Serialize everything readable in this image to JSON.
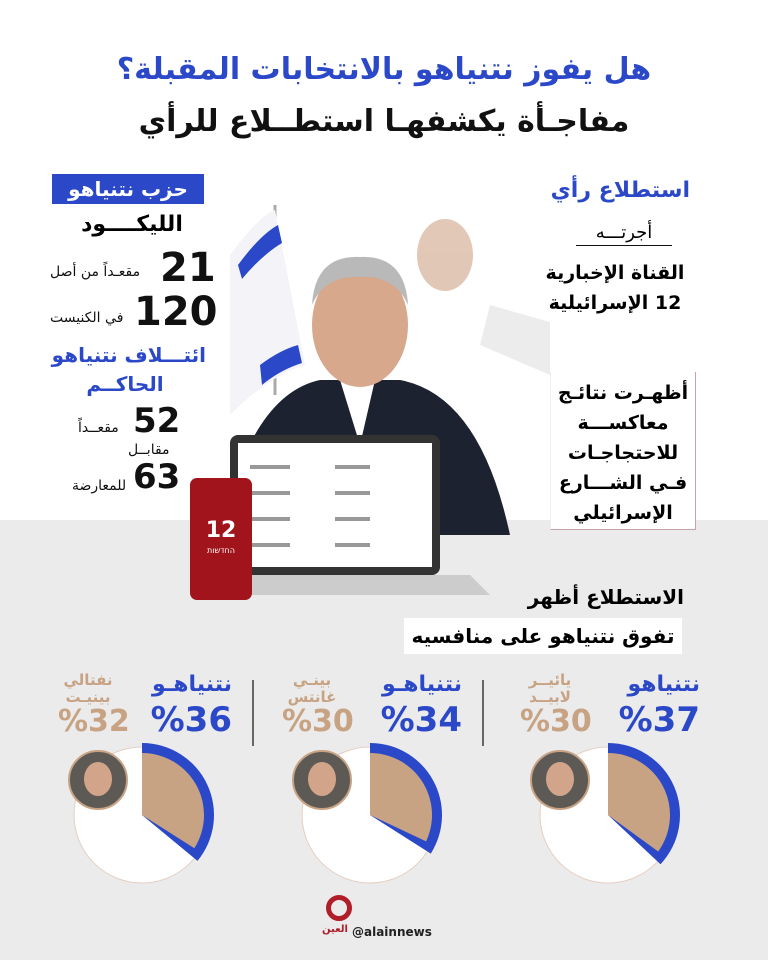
{
  "header": {
    "title": "هل يفوز نتنياهو بالانتخابات المقبلة؟",
    "subtitle": "مفاجـأة يكشفهـا استطــلاع للرأي"
  },
  "left": {
    "party_tag": "حزب نتنياهو",
    "party_name": "الليكــــود",
    "seats": "21",
    "seats_label": "مقعـداً من أصل",
    "total": "120",
    "total_label": "في الكنيست",
    "coalition_title_1": "ائتـــلاف نتنياهو",
    "coalition_title_2": "الحاكــم",
    "coalition_seats": "52",
    "coalition_label": "مقعــداً",
    "versus": "مقابــل",
    "opposition_seats": "63",
    "opposition_label": "للمعارضة"
  },
  "right": {
    "poll_title": "استطلاع رأي",
    "conducted_by": "أجرتـــه",
    "channel_1": "القناة الإخبارية",
    "channel_2": "12 الإسرائيلية",
    "box_lines": [
      "أظهـرت نتائـج",
      "معاكســـة",
      "للاحتجاجـات",
      "فـي الشـــارع",
      "الإسرائيلي"
    ]
  },
  "image": {
    "phone_logo": "12",
    "phone_text": "החדשות"
  },
  "summary": {
    "line1": "الاستطلاع أظهر",
    "line2": "تفوق نتنياهو على منافسيه"
  },
  "colors": {
    "netanyahu": "#2b48c8",
    "rival": "#c7a283"
  },
  "chart_data": {
    "type": "pie",
    "matchups": [
      {
        "netanyahu_label": "نتنياهو",
        "netanyahu_pct": 37,
        "netanyahu_text": "%37",
        "rival_label": "يائيــر لابيــد",
        "rival_pct": 30,
        "rival_text": "%30"
      },
      {
        "netanyahu_label": "نتنياهـو",
        "netanyahu_pct": 34,
        "netanyahu_text": "%34",
        "rival_label": "بينـي غانتس",
        "rival_pct": 30,
        "rival_text": "%30"
      },
      {
        "netanyahu_label": "نتنياهـو",
        "netanyahu_pct": 36,
        "netanyahu_text": "%36",
        "rival_label": "نفتالي بينيـت",
        "rival_pct": 32,
        "rival_text": "%32"
      }
    ]
  },
  "footer": {
    "handle": "@alainnews",
    "logo_text": "العين"
  }
}
